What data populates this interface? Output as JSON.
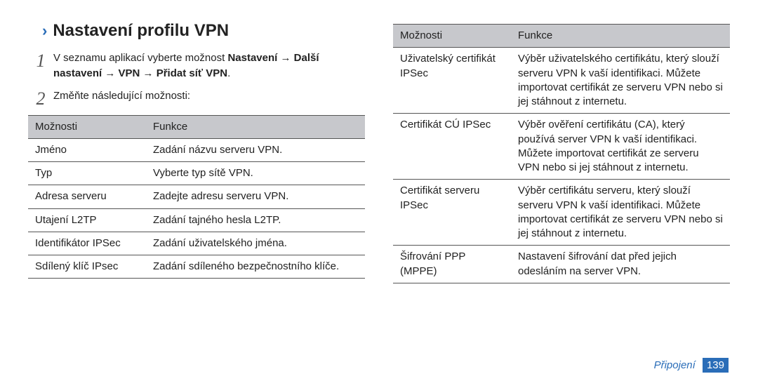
{
  "heading": "Nastavení profilu VPN",
  "step1": {
    "num": "1",
    "pre": "V seznamu aplikací vyberte možnost ",
    "boldpath": "Nastavení → Další nastavení → VPN → Přidat síť VPN",
    "post": "."
  },
  "step2": {
    "num": "2",
    "text": "Změňte následující možnosti:"
  },
  "tableHeader": {
    "c1": "Možnosti",
    "c2": "Funkce"
  },
  "leftRows": [
    {
      "c1": "Jméno",
      "c2": "Zadání názvu serveru VPN."
    },
    {
      "c1": "Typ",
      "c2": "Vyberte typ sítě VPN."
    },
    {
      "c1": "Adresa serveru",
      "c2": "Zadejte adresu serveru VPN."
    },
    {
      "c1": "Utajení L2TP",
      "c2": "Zadání tajného hesla L2TP."
    },
    {
      "c1": "Identifikátor IPSec",
      "c2": "Zadání uživatelského jména."
    },
    {
      "c1": "Sdílený klíč IPsec",
      "c2": "Zadání sdíleného bezpečnostního klíče."
    }
  ],
  "rightRows": [
    {
      "c1": "Uživatelský certifikát IPSec",
      "c2": "Výběr uživatelského certifikátu, který slouží serveru VPN k vaší identifikaci. Můžete importovat certifikát ze serveru VPN nebo si jej stáhnout z internetu."
    },
    {
      "c1": "Certifikát CÚ IPSec",
      "c2": "Výběr ověření certifikátu (CA), který používá server VPN k vaší identifikaci. Můžete importovat certifikát ze serveru VPN nebo si jej stáhnout z internetu."
    },
    {
      "c1": "Certifikát serveru IPSec",
      "c2": "Výběr certifikátu serveru, který slouží serveru VPN k vaší identifikaci. Můžete importovat certifikát ze serveru VPN nebo si jej stáhnout z internetu."
    },
    {
      "c1": "Šifrování PPP (MPPE)",
      "c2": "Nastavení šifrování dat před jejich odesláním na server VPN."
    }
  ],
  "footer": {
    "label": "Připojení",
    "page": "139"
  }
}
